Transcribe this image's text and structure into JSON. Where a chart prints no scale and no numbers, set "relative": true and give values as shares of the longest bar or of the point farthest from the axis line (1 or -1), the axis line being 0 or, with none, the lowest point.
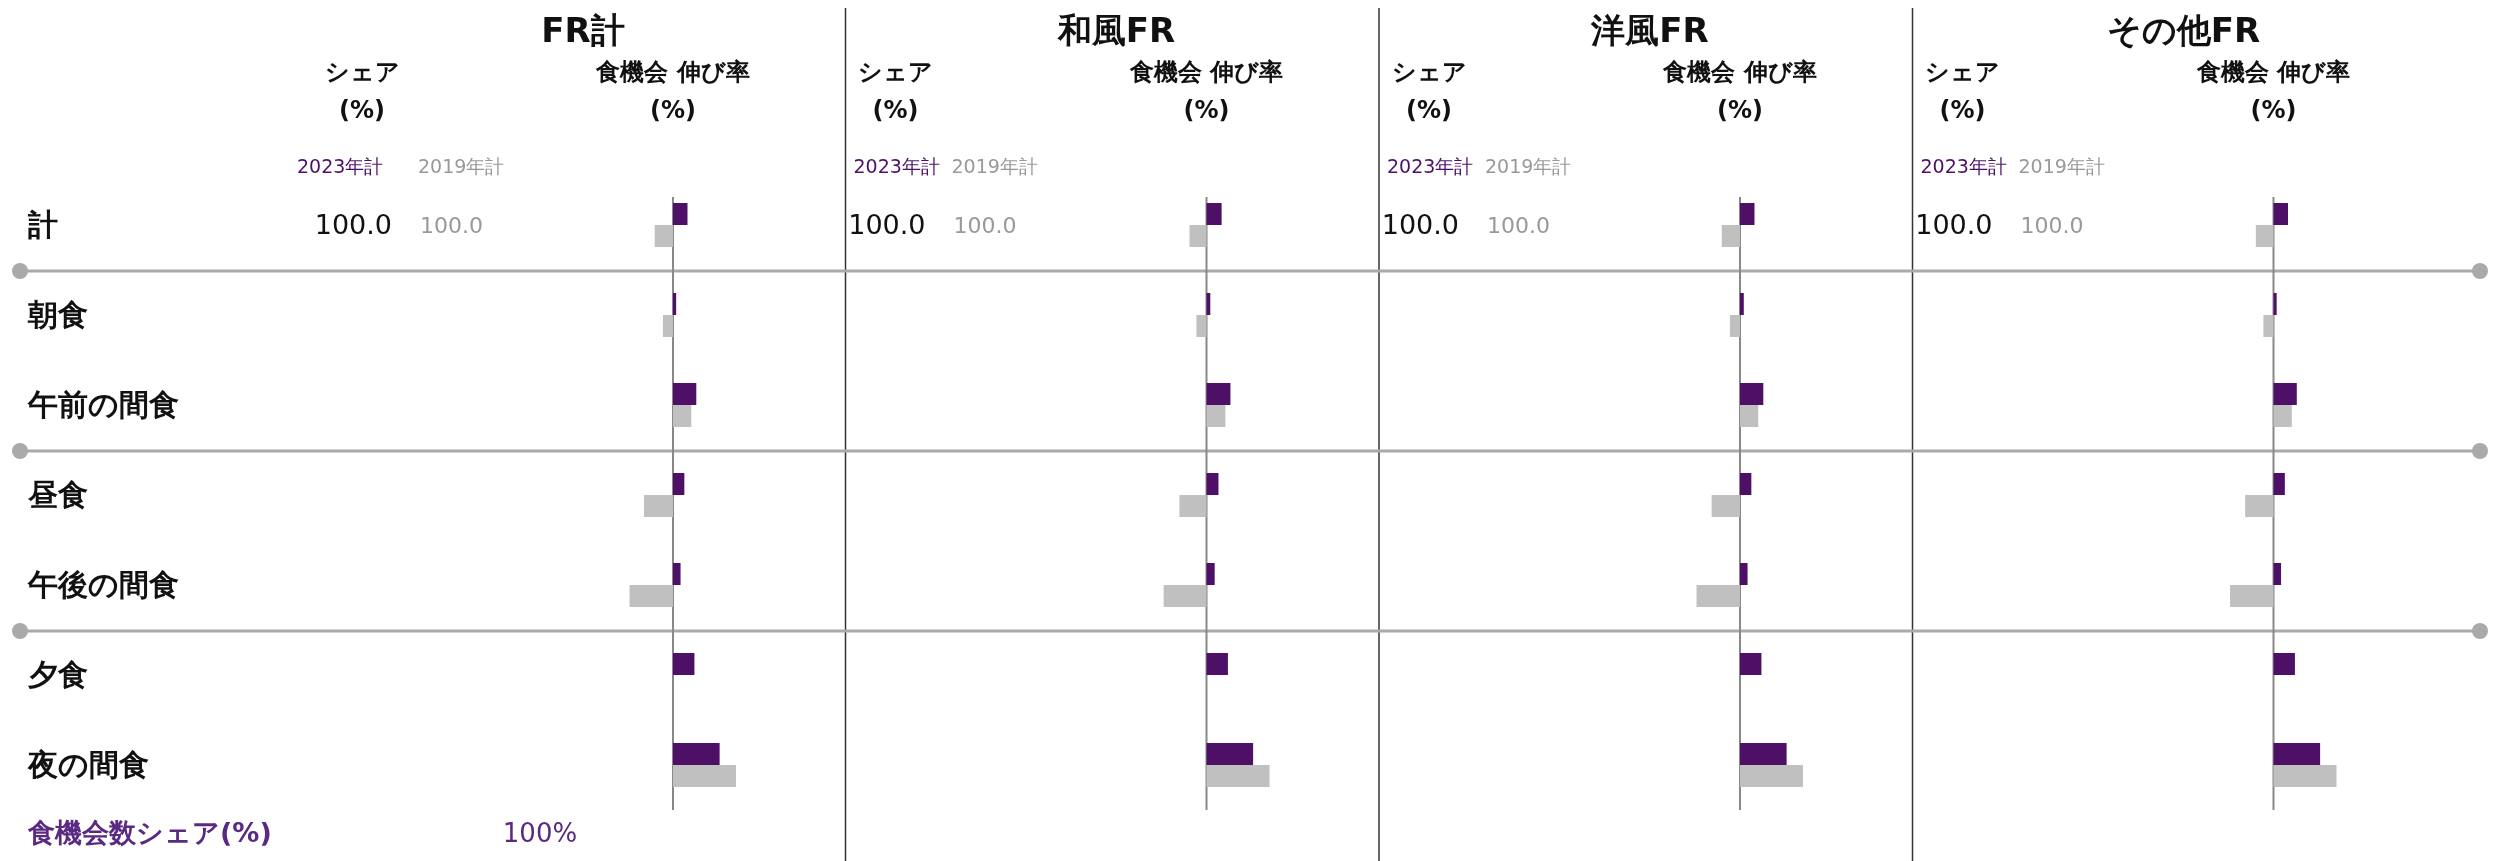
{
  "chart_data": [
    {
      "type": "bar",
      "orientation": "horizontal",
      "relative": true,
      "title": "FR計",
      "xlabel": "食機会 伸び率 (%)",
      "legend": "top left",
      "tick_labels": "y",
      "categories": [
        "計",
        "朝食",
        "午前の間食",
        "昼食",
        "午後の間食",
        "夕食",
        "夜の間食"
      ],
      "series": [
        {
          "name": "2023年計",
          "color": "#4e1067",
          "values": [
            0.23,
            0.05,
            0.37,
            0.18,
            0.12,
            0.34,
            0.74
          ]
        },
        {
          "name": "2019年計",
          "color": "#c0c0c0",
          "values": [
            -0.29,
            -0.16,
            0.29,
            -0.46,
            -0.69,
            null,
            1
          ]
        }
      ],
      "annotations": [
        "シェア (%)",
        "100.0",
        "100.0",
        "食機会数シェア(%)",
        "100%"
      ]
    },
    {
      "type": "bar",
      "orientation": "horizontal",
      "relative": true,
      "title": "和風FR",
      "xlabel": "食機会 伸び率 (%)",
      "legend": "top left",
      "tick_labels": false,
      "categories": [
        null,
        null,
        null,
        null,
        null,
        null,
        null
      ],
      "series": [
        {
          "name": "2023年計",
          "color": "#4e1067",
          "values": [
            0.24,
            0.06,
            0.38,
            0.19,
            0.13,
            0.34,
            0.74
          ]
        },
        {
          "name": "2019年計",
          "color": "#c0c0c0",
          "values": [
            -0.27,
            -0.16,
            0.3,
            -0.43,
            -0.68,
            null,
            1
          ]
        }
      ],
      "annotations": [
        "シェア (%)",
        "100.0",
        "100.0"
      ]
    },
    {
      "type": "bar",
      "orientation": "horizontal",
      "relative": true,
      "title": "洋風FR",
      "xlabel": "食機会 伸び率 (%)",
      "legend": "top left",
      "tick_labels": false,
      "categories": [
        null,
        null,
        null,
        null,
        null,
        null,
        null
      ],
      "series": [
        {
          "name": "2023年計",
          "color": "#4e1067",
          "values": [
            0.23,
            0.06,
            0.37,
            0.18,
            0.12,
            0.34,
            0.74
          ]
        },
        {
          "name": "2019年計",
          "color": "#c0c0c0",
          "values": [
            -0.29,
            -0.16,
            0.29,
            -0.45,
            -0.69,
            null,
            1
          ]
        }
      ],
      "annotations": [
        "シェア (%)",
        "100.0",
        "100.0"
      ]
    },
    {
      "type": "bar",
      "orientation": "horizontal",
      "relative": true,
      "title": "その他FR",
      "xlabel": "食機会 伸び率 (%)",
      "legend": "top left",
      "tick_labels": false,
      "categories": [
        null,
        null,
        null,
        null,
        null,
        null,
        null
      ],
      "series": [
        {
          "name": "2023年計",
          "color": "#4e1067",
          "values": [
            0.23,
            0.05,
            0.37,
            0.18,
            0.12,
            0.34,
            0.74
          ]
        },
        {
          "name": "2019年計",
          "color": "#c0c0c0",
          "values": [
            -0.28,
            -0.16,
            0.29,
            -0.45,
            -0.69,
            null,
            1
          ]
        }
      ],
      "annotations": [
        "シェア (%)",
        "100.0",
        "100.0"
      ]
    }
  ]
}
